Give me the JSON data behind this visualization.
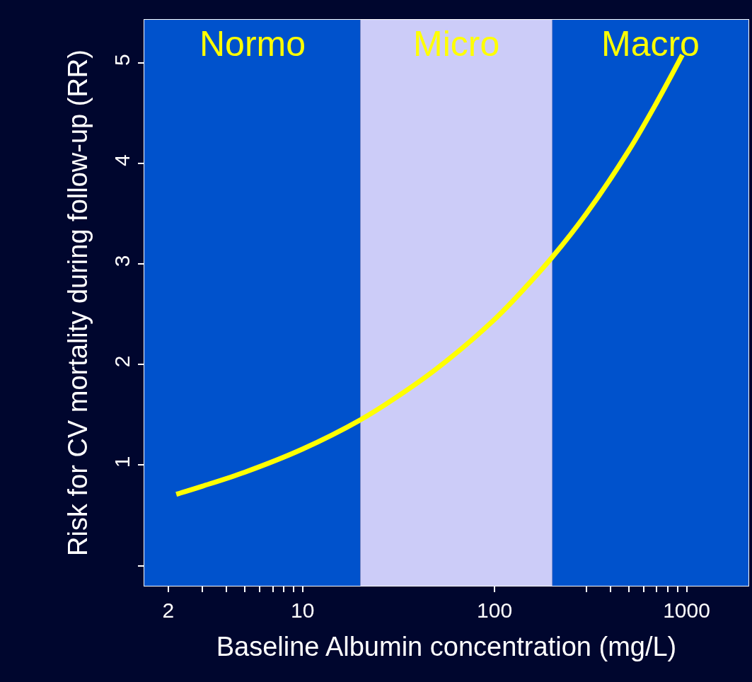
{
  "chart_data": {
    "type": "line",
    "xlabel": "Baseline Albumin concentration (mg/L)",
    "ylabel": "Risk for CV mortality during follow-up (RR)",
    "x": [
      2.2,
      3,
      5,
      10,
      20,
      30,
      50,
      100,
      150,
      200,
      300,
      500,
      700,
      950
    ],
    "series": [
      {
        "color": "#ffff00",
        "values": [
          0.71,
          0.79,
          0.93,
          1.16,
          1.45,
          1.66,
          1.96,
          2.45,
          2.8,
          3.07,
          3.5,
          4.13,
          4.61,
          5.08
        ]
      }
    ],
    "log": "x",
    "xlim": [
      1.5,
      2100
    ],
    "xticks": [
      2,
      {
        "value": 3,
        "label": null
      },
      {
        "value": 4,
        "label": null
      },
      {
        "value": 5,
        "label": null
      },
      {
        "value": 6,
        "label": null
      },
      {
        "value": 7,
        "label": null
      },
      {
        "value": 8,
        "label": null
      },
      {
        "value": 9,
        "label": null
      },
      10,
      100,
      {
        "value": 300,
        "label": null
      },
      {
        "value": 400,
        "label": null
      },
      {
        "value": 500,
        "label": null
      },
      {
        "value": 600,
        "label": null
      },
      {
        "value": 700,
        "label": null
      },
      {
        "value": 800,
        "label": null
      },
      {
        "value": 900,
        "label": null
      },
      1000
    ],
    "ylim": [
      -0.2,
      5.43
    ],
    "yticks": [
      {
        "value": 0,
        "label": null
      },
      1,
      2,
      3,
      4,
      5
    ],
    "bands": [
      {
        "axis": "x",
        "from": 1.5,
        "to": 20,
        "label": "Normo",
        "color": "#0052cc"
      },
      {
        "axis": "x",
        "from": 20,
        "to": 200,
        "label": "Micro",
        "color": "#ccccf8"
      },
      {
        "axis": "x",
        "from": 200,
        "to": 2100,
        "label": "Macro",
        "color": "#0052cc"
      }
    ],
    "marker": "none",
    "line_style": "solid",
    "grid": false
  }
}
